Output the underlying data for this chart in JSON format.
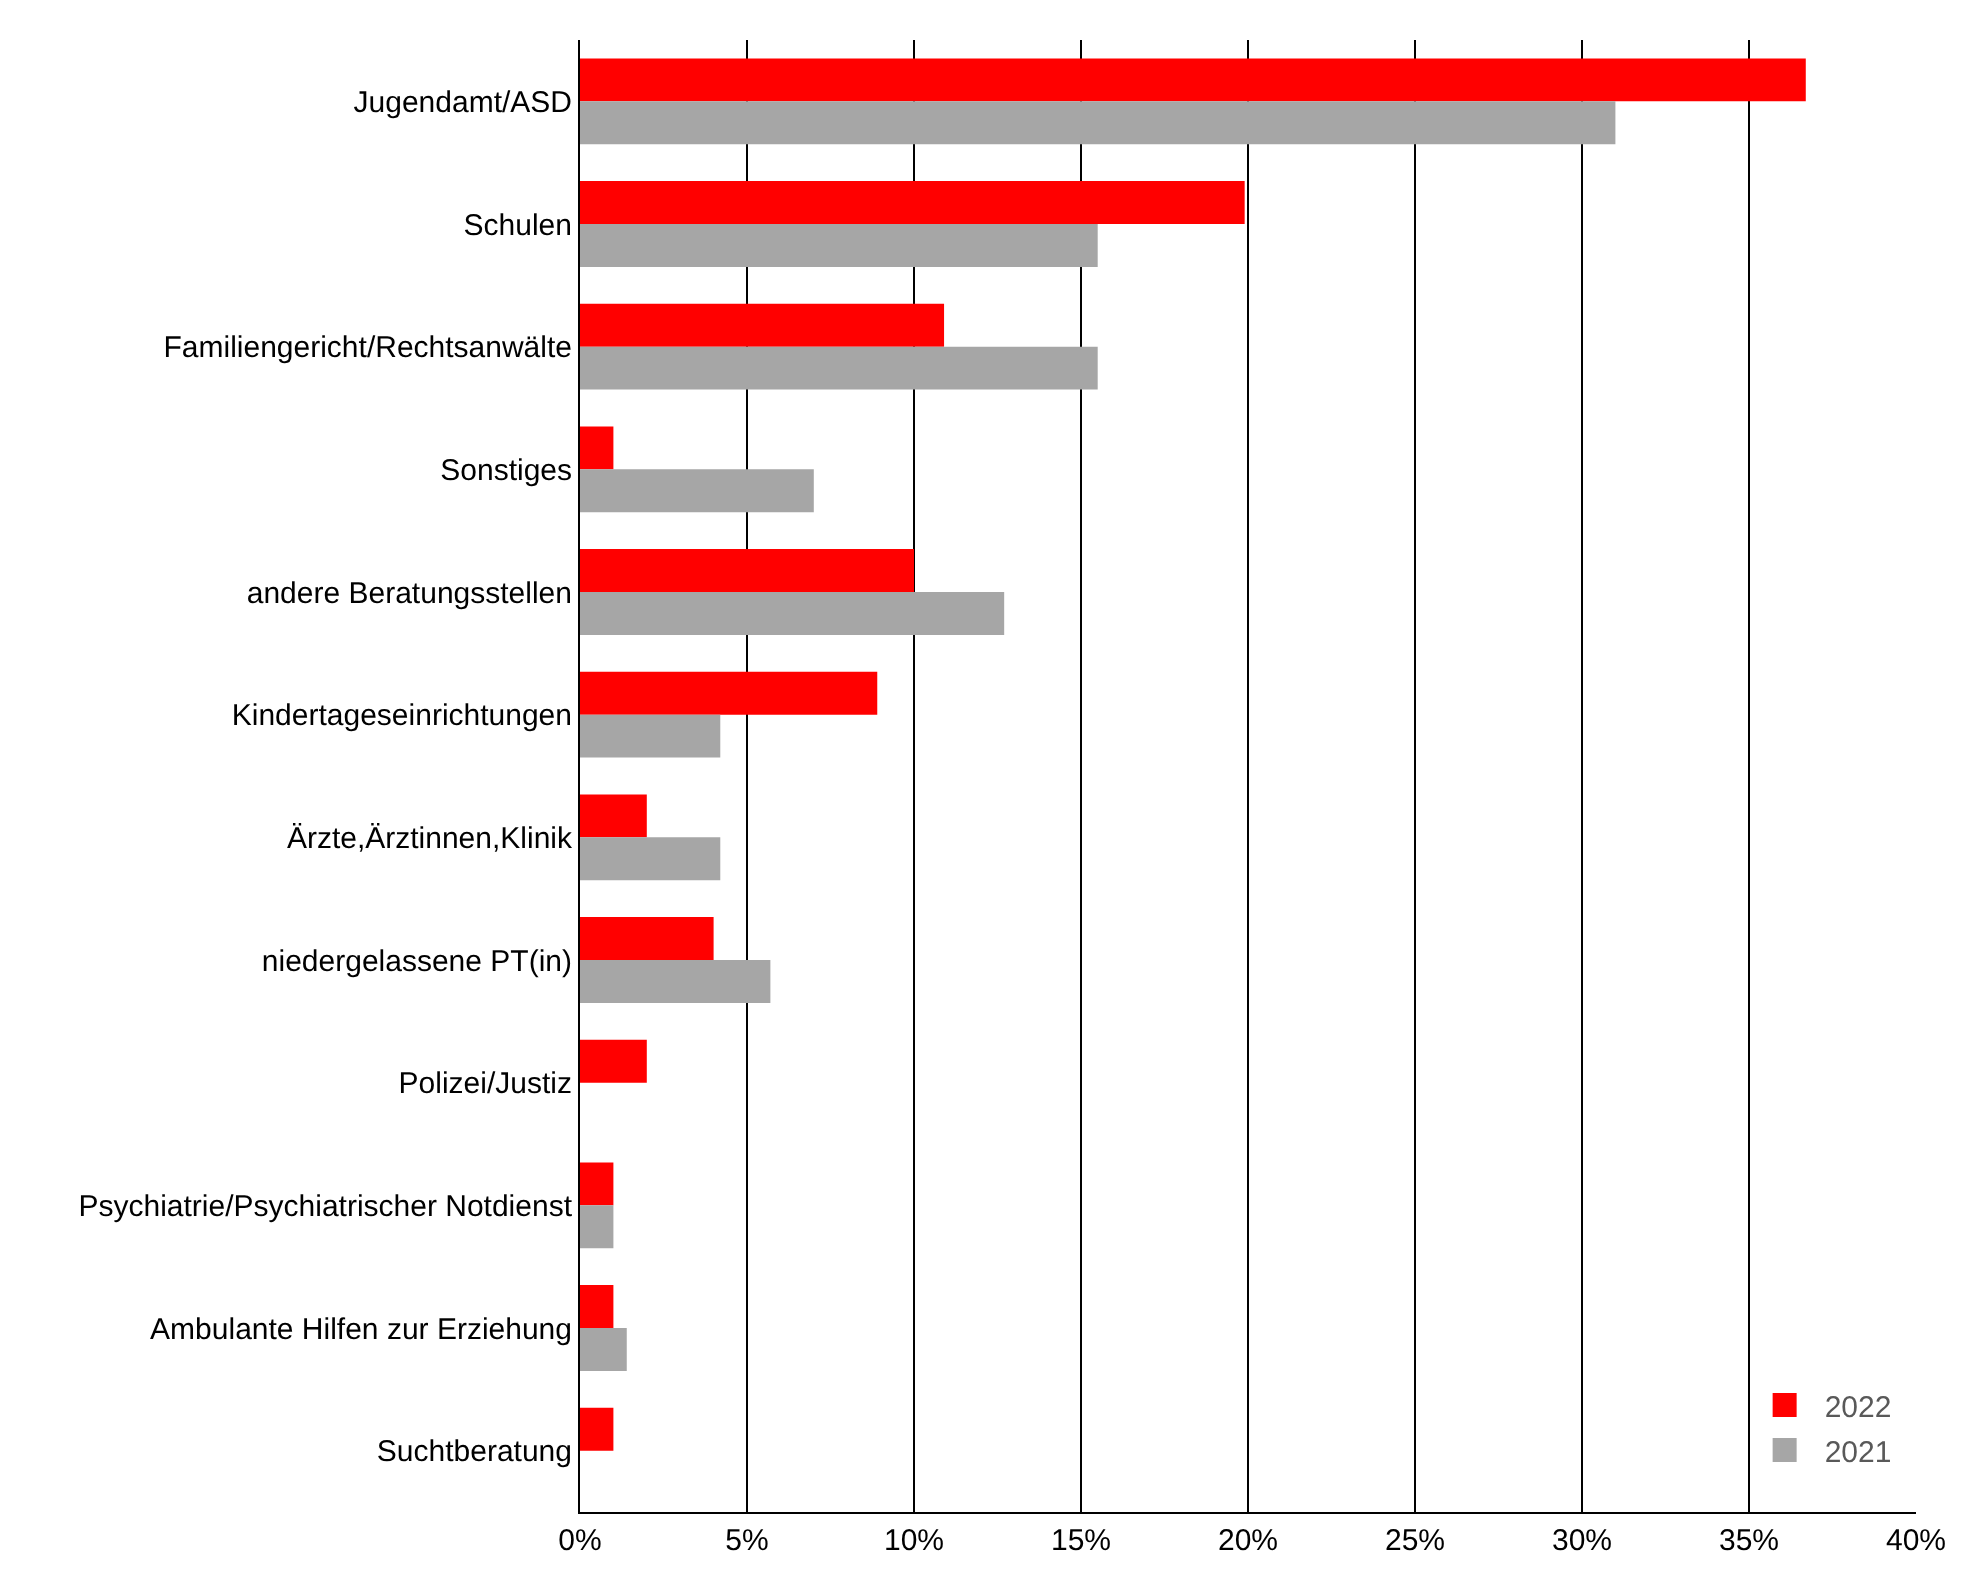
{
  "chart_data": {
    "type": "bar",
    "orientation": "horizontal",
    "categories": [
      "Jugendamt/ASD",
      "Schulen",
      "Familiengericht/Rechtsanwälte",
      "Sonstiges",
      "andere Beratungsstellen",
      "Kindertageseinrichtungen",
      "Ärzte,Ärztinnen,Klinik",
      "niedergelassene PT(in)",
      "Polizei/Justiz",
      "Psychiatrie/Psychiatrischer Notdienst",
      "Ambulante Hilfen zur Erziehung",
      "Suchtberatung"
    ],
    "series": [
      {
        "name": "2022",
        "color": "#ff0000",
        "values": [
          36.7,
          19.9,
          10.9,
          1.0,
          10.0,
          8.9,
          2.0,
          4.0,
          2.0,
          1.0,
          1.0,
          1.0
        ]
      },
      {
        "name": "2021",
        "color": "#a6a6a6",
        "values": [
          31.0,
          15.5,
          15.5,
          7.0,
          12.7,
          4.2,
          4.2,
          5.7,
          null,
          1.0,
          1.4,
          null
        ]
      }
    ],
    "xlim": [
      0,
      40
    ],
    "xticks": [
      {
        "value": 0,
        "label": "0%"
      },
      {
        "value": 5,
        "label": "5%"
      },
      {
        "value": 10,
        "label": "10%"
      },
      {
        "value": 15,
        "label": "15%"
      },
      {
        "value": 20,
        "label": "20%"
      },
      {
        "value": 25,
        "label": "25%"
      },
      {
        "value": 30,
        "label": "30%"
      },
      {
        "value": 35,
        "label": "35%"
      },
      {
        "value": 40,
        "label": "40%"
      }
    ],
    "grid": "x",
    "legend": "bottom right"
  }
}
